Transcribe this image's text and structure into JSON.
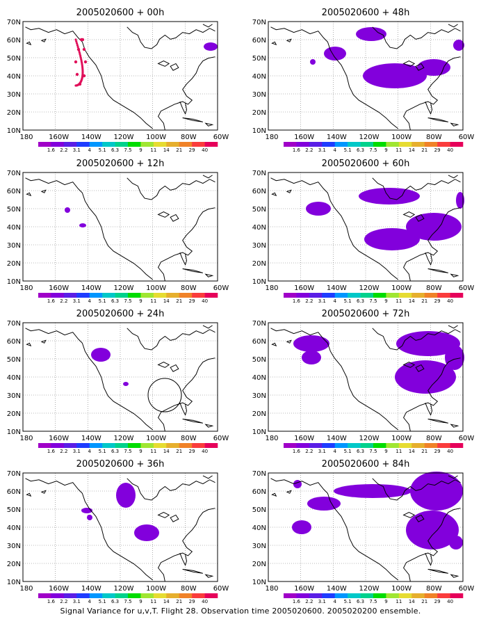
{
  "panels": [
    {
      "title": "2005020600 + 00h"
    },
    {
      "title": "2005020600 + 48h"
    },
    {
      "title": "2005020600 + 12h"
    },
    {
      "title": "2005020600 + 60h"
    },
    {
      "title": "2005020600 + 24h"
    },
    {
      "title": "2005020600 + 72h"
    },
    {
      "title": "2005020600 + 36h"
    },
    {
      "title": "2005020600 + 84h"
    }
  ],
  "axes": {
    "lon_labels": [
      "180",
      "160W",
      "140W",
      "120W",
      "100W",
      "80W",
      "60W"
    ],
    "lat_labels": [
      "10N",
      "20N",
      "30N",
      "40N",
      "50N",
      "60N",
      "70N"
    ]
  },
  "colorbar": {
    "labels": [
      "1.6",
      "2.2",
      "3.1",
      "4",
      "5.1",
      "6.3",
      "7.5",
      "9",
      "11",
      "14",
      "21",
      "29",
      "40"
    ],
    "colors": [
      "#a000c8",
      "#8200dc",
      "#5a1ee6",
      "#1e3cff",
      "#0096ff",
      "#00c8c8",
      "#00d28c",
      "#00dc00",
      "#a0e632",
      "#e6dc32",
      "#e6af2d",
      "#f08228",
      "#fa3c3c",
      "#e6005a"
    ]
  },
  "caption": "Signal Variance for u,v,T. Flight 28. Observation time 2005020600. 2005020200 ensemble."
}
